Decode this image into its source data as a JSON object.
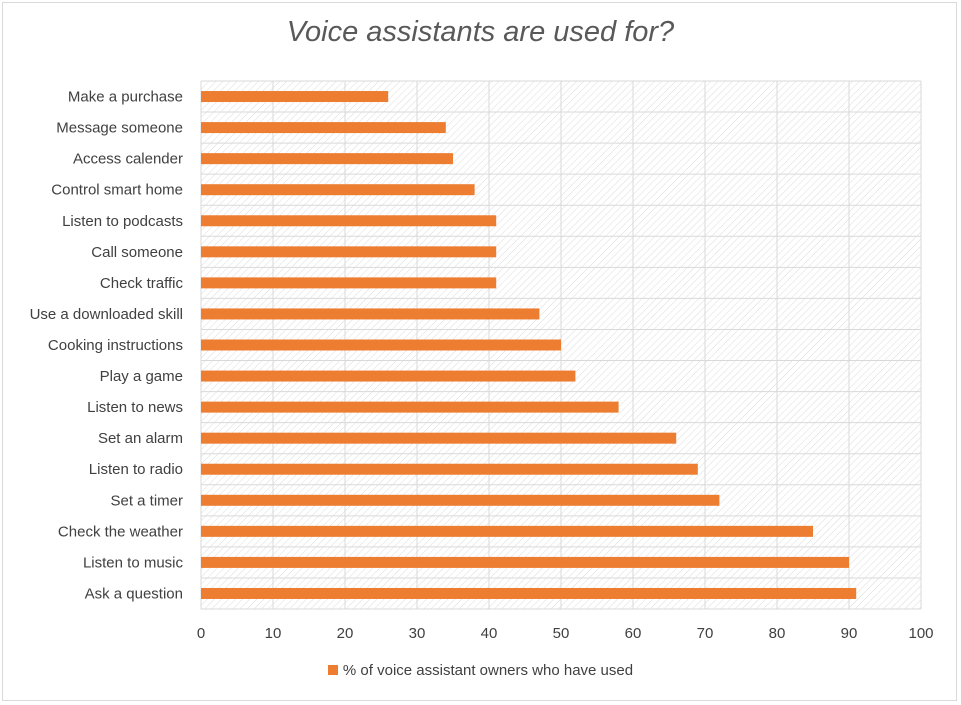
{
  "chart_data": {
    "type": "bar",
    "orientation": "horizontal",
    "title": "Voice assistants are used for?",
    "categories": [
      "Ask a question",
      "Listen to music",
      "Check the weather",
      "Set a timer",
      "Listen to radio",
      "Set an alarm",
      "Listen to news",
      "Play a game",
      "Cooking instructions",
      "Use a downloaded skill",
      "Check traffic",
      "Call someone",
      "Listen to podcasts",
      "Control smart home",
      "Access calender",
      "Message someone",
      "Make a purchase"
    ],
    "series": [
      {
        "name": "% of voice assistant owners who have used",
        "values": [
          91,
          90,
          85,
          72,
          69,
          66,
          58,
          52,
          50,
          47,
          41,
          41,
          41,
          38,
          35,
          34,
          26
        ]
      }
    ],
    "xlim": [
      0,
      100
    ],
    "xticks": [
      "0",
      "10",
      "20",
      "30",
      "40",
      "50",
      "60",
      "70",
      "80",
      "90",
      "100"
    ],
    "grid": true,
    "legend": "bottom",
    "colors": {
      "bar": "#ed7d31",
      "grid": "#d9d9d9",
      "text": "#404040",
      "title": "#595959"
    }
  }
}
